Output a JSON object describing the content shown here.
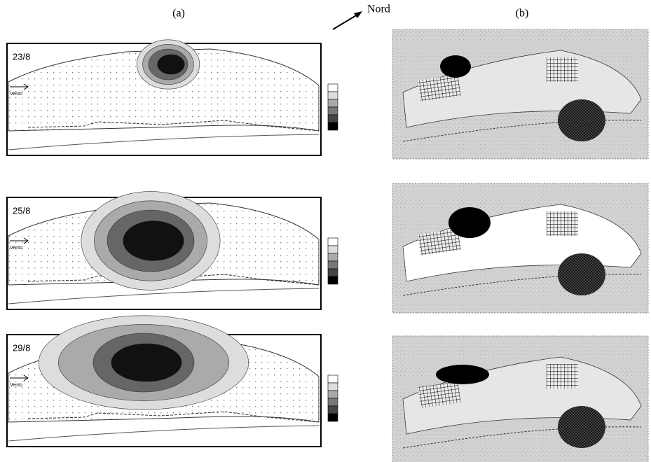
{
  "header": {
    "label_a": "(a)",
    "label_b": "(b)",
    "north": "Nord"
  },
  "panels": [
    {
      "date": "23/8",
      "wind": "Vento"
    },
    {
      "date": "25/8",
      "wind": "Vento"
    },
    {
      "date": "29/8",
      "wind": "Vento"
    }
  ]
}
